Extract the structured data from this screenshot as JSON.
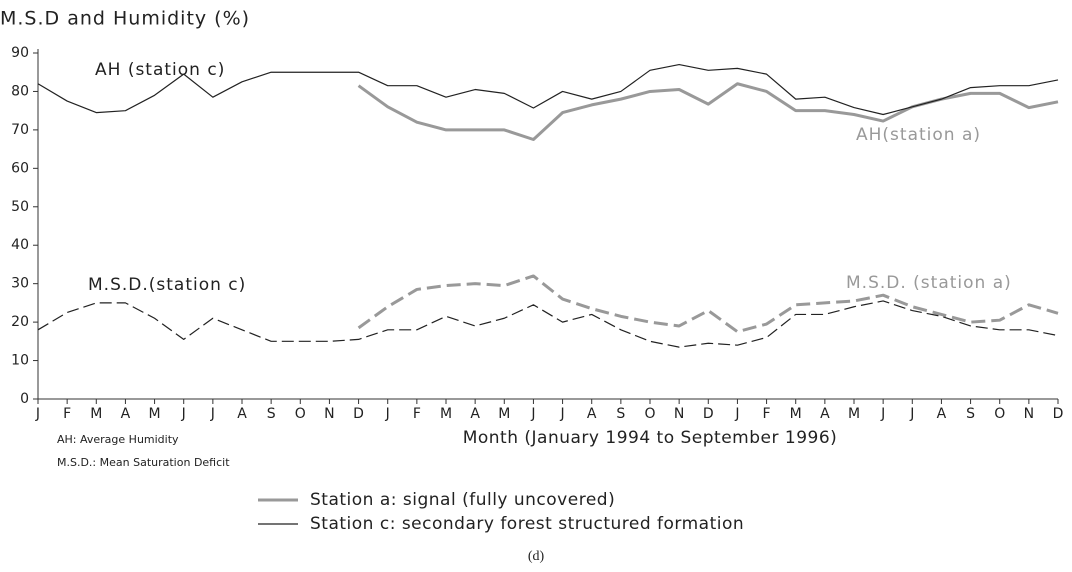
{
  "chart_data": {
    "type": "line",
    "title": "M.S.D and Humidity (%)",
    "xlabel": "Month (January 1994 to September 1996)",
    "caption": "(d)",
    "footnotes": [
      "AH: Average Humidity",
      "M.S.D.: Mean Saturation Deficit"
    ],
    "annotations": [
      "AH (station c)",
      "AH(station a)",
      "M.S.D.(station c)",
      "M.S.D. (station a)"
    ],
    "categories": [
      "J",
      "F",
      "M",
      "A",
      "M",
      "J",
      "J",
      "A",
      "S",
      "O",
      "N",
      "D",
      "J",
      "F",
      "M",
      "A",
      "M",
      "J",
      "J",
      "A",
      "S",
      "O",
      "N",
      "D",
      "J",
      "F",
      "M",
      "A",
      "M",
      "J",
      "J",
      "A",
      "S",
      "O",
      "N",
      "D"
    ],
    "ylim": [
      0,
      90
    ],
    "yticks": [
      0,
      10,
      20,
      30,
      40,
      50,
      60,
      70,
      80,
      90
    ],
    "series": [
      {
        "name": "Station a: signal (fully uncovered)",
        "color": "#999999",
        "ah": [
          null,
          null,
          null,
          null,
          null,
          null,
          null,
          null,
          null,
          null,
          null,
          81.5,
          76,
          72,
          70,
          70,
          70,
          67.5,
          74.5,
          76.5,
          78,
          80,
          80.5,
          76.7,
          82,
          80,
          75,
          75,
          74,
          72.3,
          76,
          78,
          79.5,
          79.5,
          75.8,
          77.3
        ],
        "msd": [
          null,
          null,
          null,
          null,
          null,
          null,
          null,
          null,
          null,
          null,
          null,
          18.5,
          24,
          28.5,
          29.5,
          30,
          29.5,
          32,
          26,
          23.5,
          21.5,
          20,
          19,
          23,
          17.5,
          19.5,
          24.5,
          25,
          25.5,
          27,
          24,
          22,
          20,
          20.5,
          24.5,
          22.3
        ]
      },
      {
        "name": "Station c: secondary forest structured formation",
        "color": "#222222",
        "ah": [
          82,
          77.5,
          74.5,
          75,
          79,
          84.5,
          78.5,
          82.5,
          85,
          85,
          85,
          85,
          81.5,
          81.5,
          78.5,
          80.5,
          79.5,
          75.7,
          80,
          78,
          80,
          85.5,
          87,
          85.5,
          86,
          84.5,
          78,
          78.5,
          75.8,
          74,
          76,
          78,
          81,
          81.5,
          81.5,
          83
        ],
        "msd": [
          18,
          22.5,
          25,
          25,
          21,
          15.5,
          21,
          18,
          15,
          15,
          15,
          15.5,
          18,
          18,
          21.5,
          19,
          21,
          24.5,
          20,
          22,
          18,
          15,
          13.5,
          14.5,
          14,
          16,
          22,
          22,
          24,
          25.5,
          23,
          21.5,
          19,
          18,
          18,
          16.5
        ]
      }
    ]
  }
}
